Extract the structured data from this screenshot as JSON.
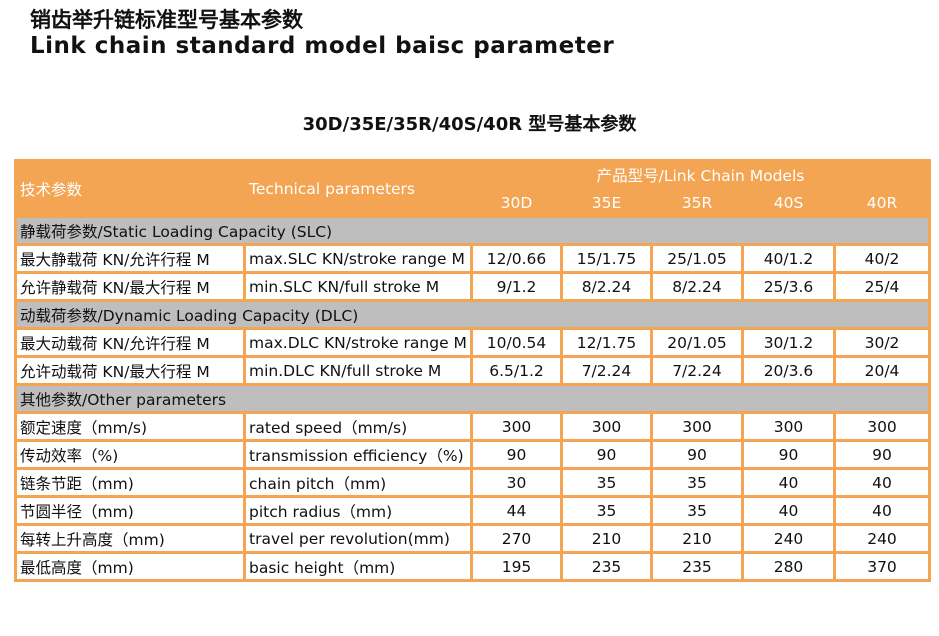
{
  "title_cn": "销齿举升链标准型号基本参数",
  "title_en": "Link chain standard model baisc parameter",
  "subtitle": "30D/35E/35R/40S/40R 型号基本参数",
  "header": {
    "col1": "技术参数",
    "col2": "Technical parameters",
    "models_label": "产品型号/Link Chain Models",
    "models": [
      "30D",
      "35E",
      "35R",
      "40S",
      "40R"
    ]
  },
  "sections": [
    {
      "title": "静载荷参数/Static Loading Capacity (SLC)",
      "rows": [
        {
          "cn": "最大静载荷 KN/允许行程 M",
          "en": "max.SLC KN/stroke range M",
          "values": [
            "12/0.66",
            "15/1.75",
            "25/1.05",
            "40/1.2",
            "40/2"
          ]
        },
        {
          "cn": "允许静载荷 KN/最大行程 M",
          "en": "min.SLC KN/full stroke M",
          "values": [
            "9/1.2",
            "8/2.24",
            "8/2.24",
            "25/3.6",
            "25/4"
          ]
        }
      ]
    },
    {
      "title": "动载荷参数/Dynamic Loading Capacity (DLC)",
      "rows": [
        {
          "cn": "最大动载荷 KN/允许行程 M",
          "en": "max.DLC KN/stroke range M",
          "values": [
            "10/0.54",
            "12/1.75",
            "20/1.05",
            "30/1.2",
            "30/2"
          ]
        },
        {
          "cn": "允许动载荷 KN/最大行程 M",
          "en": "min.DLC KN/full stroke M",
          "values": [
            "6.5/1.2",
            "7/2.24",
            "7/2.24",
            "20/3.6",
            "20/4"
          ]
        }
      ]
    },
    {
      "title": "其他参数/Other parameters",
      "rows": [
        {
          "cn": "额定速度（mm/s)",
          "en": "rated speed（mm/s)",
          "values": [
            "300",
            "300",
            "300",
            "300",
            "300"
          ]
        },
        {
          "cn": "传动效率（%)",
          "en": "transmission efficiency（%)",
          "values": [
            "90",
            "90",
            "90",
            "90",
            "90"
          ]
        },
        {
          "cn": "链条节距（mm)",
          "en": "chain pitch（mm)",
          "values": [
            "30",
            "35",
            "35",
            "40",
            "40"
          ]
        },
        {
          "cn": "节圆半径（mm)",
          "en": "pitch radius（mm)",
          "values": [
            "44",
            "35",
            "35",
            "40",
            "40"
          ]
        },
        {
          "cn": "每转上升高度（mm)",
          "en": "travel per revolution(mm)",
          "values": [
            "270",
            "210",
            "210",
            "240",
            "240"
          ]
        },
        {
          "cn": "最低高度（mm)",
          "en": "basic height（mm)",
          "values": [
            "195",
            "235",
            "235",
            "280",
            "370"
          ]
        }
      ]
    }
  ]
}
